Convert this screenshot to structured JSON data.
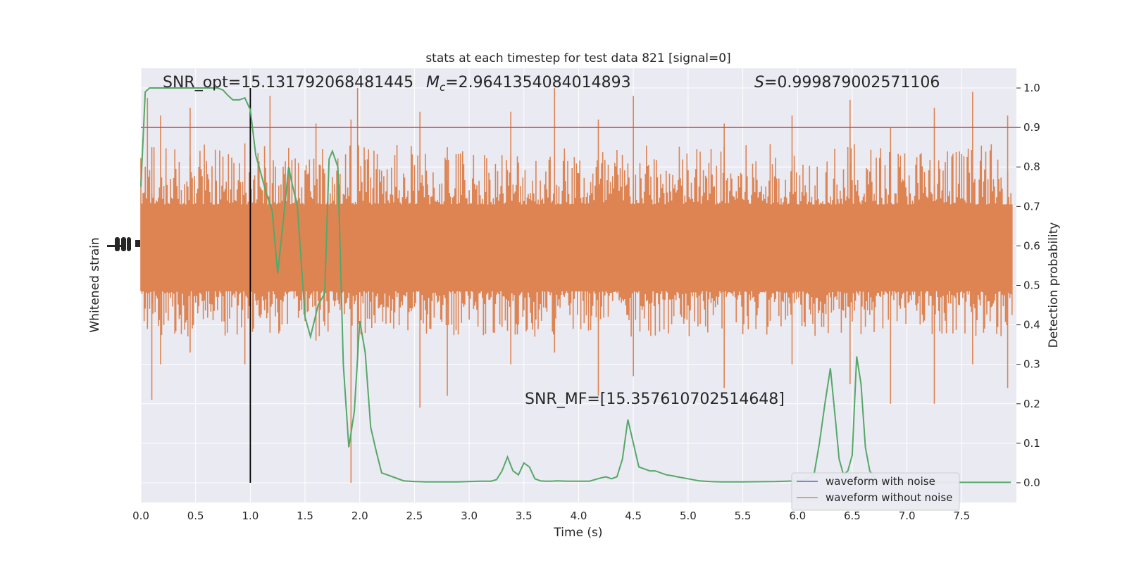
{
  "chart_data": {
    "type": "line",
    "title": "stats at each timestep for test data 821 [signal=0]",
    "xlabel": "Time (s)",
    "ylabel_left": "Whitened strain",
    "ylabel_right": "Detection probability",
    "xlim": [
      0.0,
      8.0
    ],
    "ylim_right": [
      -0.05,
      1.05
    ],
    "x_ticks": [
      "0.0",
      "0.5",
      "1.0",
      "1.5",
      "2.0",
      "2.5",
      "3.0",
      "3.5",
      "4.0",
      "4.5",
      "5.0",
      "5.5",
      "6.0",
      "6.5",
      "7.0",
      "7.5"
    ],
    "x_tick_values": [
      0,
      0.5,
      1,
      1.5,
      2,
      2.5,
      3,
      3.5,
      4,
      4.5,
      5,
      5.5,
      6,
      6.5,
      7,
      7.5
    ],
    "y_right_ticks": [
      "0.0",
      "0.1",
      "0.2",
      "0.3",
      "0.4",
      "0.5",
      "0.6",
      "0.7",
      "0.8",
      "0.9",
      "1.0"
    ],
    "y_right_tick_values": [
      0,
      0.1,
      0.2,
      0.3,
      0.4,
      0.5,
      0.6,
      0.7,
      0.8,
      0.9,
      1.0
    ],
    "grid": true,
    "legend_position": "lower-right",
    "legend": [
      {
        "label": "waveform with noise",
        "color": "#4c72b0"
      },
      {
        "label": "waveform without noise",
        "color": "#dd8452"
      }
    ],
    "annotations": {
      "snr_opt": "SNR_opt=15.131792068481445",
      "mc_symbol": "M",
      "mc_subscript": "c",
      "mc_value": "=2.9641354084014893",
      "s_symbol": "S",
      "s_value": "=0.999879002571106",
      "snr_mf": "SNR_MF=[15.357610702514648]"
    },
    "threshold": {
      "value": 0.9,
      "color": "#c44e52"
    },
    "merger_time": 1.0,
    "strain_noise": {
      "color": "#dd8452",
      "core_range_prob": [
        0.485,
        0.705
      ],
      "typical_range_prob": [
        0.37,
        0.86
      ],
      "spikes": [
        {
          "x": 0.06,
          "top": 0.975,
          "bottom": 0.4
        },
        {
          "x": 0.1,
          "top": 0.85,
          "bottom": 0.21
        },
        {
          "x": 0.18,
          "top": 0.93,
          "bottom": 0.3
        },
        {
          "x": 0.45,
          "top": 0.95,
          "bottom": 0.33
        },
        {
          "x": 0.95,
          "top": 0.86,
          "bottom": 0.3
        },
        {
          "x": 1.18,
          "top": 0.98,
          "bottom": 0.38
        },
        {
          "x": 1.6,
          "top": 0.91,
          "bottom": 0.36
        },
        {
          "x": 1.92,
          "top": 0.92,
          "bottom": 0.0
        },
        {
          "x": 1.98,
          "top": 1.0,
          "bottom": 0.31
        },
        {
          "x": 2.55,
          "top": 0.94,
          "bottom": 0.19
        },
        {
          "x": 2.8,
          "top": 0.85,
          "bottom": 0.22
        },
        {
          "x": 3.38,
          "top": 0.94,
          "bottom": 0.3
        },
        {
          "x": 3.78,
          "top": 1.0,
          "bottom": 0.33
        },
        {
          "x": 4.18,
          "top": 0.92,
          "bottom": 0.22
        },
        {
          "x": 4.5,
          "top": 0.98,
          "bottom": 0.27
        },
        {
          "x": 5.33,
          "top": 0.91,
          "bottom": 0.24
        },
        {
          "x": 5.95,
          "top": 0.93,
          "bottom": 0.3
        },
        {
          "x": 6.48,
          "top": 0.97,
          "bottom": 0.25
        },
        {
          "x": 6.85,
          "top": 0.9,
          "bottom": 0.2
        },
        {
          "x": 7.25,
          "top": 0.95,
          "bottom": 0.2
        },
        {
          "x": 7.6,
          "top": 0.99,
          "bottom": 0.3
        },
        {
          "x": 7.92,
          "top": 0.93,
          "bottom": 0.24
        }
      ]
    },
    "series": [
      {
        "name": "",
        "color": "#55a868",
        "x": [
          0.0,
          0.04,
          0.08,
          0.12,
          0.2,
          0.3,
          0.4,
          0.5,
          0.6,
          0.7,
          0.75,
          0.8,
          0.84,
          0.9,
          0.95,
          1.0,
          1.05,
          1.1,
          1.15,
          1.2,
          1.25,
          1.3,
          1.35,
          1.38,
          1.43,
          1.5,
          1.55,
          1.62,
          1.68,
          1.72,
          1.75,
          1.8,
          1.85,
          1.9,
          1.95,
          2.0,
          2.05,
          2.1,
          2.15,
          2.2,
          2.3,
          2.4,
          2.5,
          2.6,
          2.7,
          2.8,
          2.9,
          3.0,
          3.1,
          3.2,
          3.25,
          3.3,
          3.35,
          3.4,
          3.45,
          3.5,
          3.55,
          3.6,
          3.65,
          3.7,
          3.75,
          3.8,
          3.9,
          4.0,
          4.1,
          4.2,
          4.25,
          4.3,
          4.35,
          4.4,
          4.45,
          4.5,
          4.55,
          4.6,
          4.65,
          4.7,
          4.8,
          4.85,
          4.9,
          5.0,
          5.1,
          5.2,
          5.3,
          5.5,
          5.8,
          6.0,
          6.1,
          6.15,
          6.2,
          6.25,
          6.3,
          6.35,
          6.38,
          6.42,
          6.46,
          6.5,
          6.54,
          6.58,
          6.62,
          6.66,
          6.72,
          6.8,
          7.0,
          7.5,
          7.95
        ],
        "y": [
          0.75,
          0.99,
          1.0,
          1.0,
          1.0,
          1.0,
          1.0,
          1.0,
          1.0,
          1.0,
          0.995,
          0.98,
          0.97,
          0.97,
          0.975,
          0.945,
          0.83,
          0.78,
          0.73,
          0.69,
          0.53,
          0.66,
          0.8,
          0.76,
          0.7,
          0.42,
          0.37,
          0.45,
          0.48,
          0.82,
          0.84,
          0.8,
          0.3,
          0.09,
          0.18,
          0.41,
          0.33,
          0.14,
          0.08,
          0.025,
          0.015,
          0.005,
          0.003,
          0.002,
          0.002,
          0.002,
          0.002,
          0.003,
          0.004,
          0.004,
          0.008,
          0.03,
          0.065,
          0.03,
          0.02,
          0.05,
          0.04,
          0.01,
          0.005,
          0.004,
          0.004,
          0.005,
          0.004,
          0.004,
          0.004,
          0.012,
          0.015,
          0.01,
          0.015,
          0.06,
          0.16,
          0.1,
          0.04,
          0.035,
          0.03,
          0.03,
          0.02,
          0.018,
          0.015,
          0.01,
          0.005,
          0.003,
          0.002,
          0.002,
          0.003,
          0.005,
          0.01,
          0.02,
          0.1,
          0.2,
          0.29,
          0.15,
          0.06,
          0.02,
          0.03,
          0.07,
          0.32,
          0.25,
          0.09,
          0.03,
          0.005,
          0.002,
          0.001,
          0.001,
          0.001
        ]
      }
    ]
  }
}
